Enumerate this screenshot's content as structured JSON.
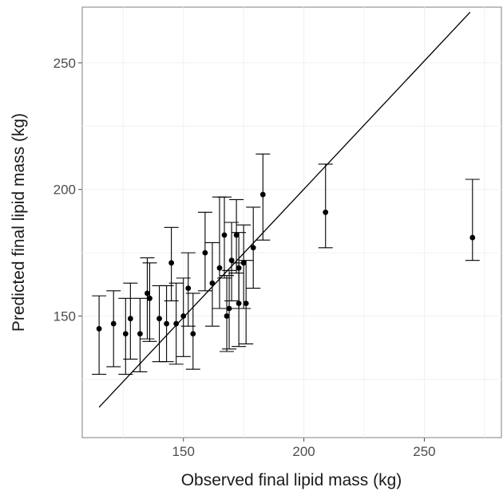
{
  "chart_data": {
    "type": "scatter",
    "xlabel": "Observed final lipid mass (kg)",
    "ylabel": "Predicted final lipid mass (kg)",
    "xlim": [
      108,
      282
    ],
    "ylim": [
      102,
      272
    ],
    "x_ticks": [
      150,
      200,
      250
    ],
    "y_ticks": [
      150,
      200,
      250
    ],
    "x_tick_labels": [
      "150",
      "200",
      "250"
    ],
    "y_tick_labels": [
      "150",
      "200",
      "250"
    ],
    "grid": true,
    "reference_line": {
      "from": [
        115,
        114
      ],
      "to": [
        269,
        270
      ]
    },
    "points": [
      {
        "x": 115,
        "y": 145,
        "lo": 127,
        "hi": 158
      },
      {
        "x": 121,
        "y": 147,
        "lo": 130,
        "hi": 160
      },
      {
        "x": 126,
        "y": 143,
        "lo": 127,
        "hi": 157
      },
      {
        "x": 128,
        "y": 149,
        "lo": 133,
        "hi": 163
      },
      {
        "x": 132,
        "y": 143,
        "lo": 128,
        "hi": 157
      },
      {
        "x": 135,
        "y": 159,
        "lo": 141,
        "hi": 173
      },
      {
        "x": 136,
        "y": 157,
        "lo": 140,
        "hi": 171
      },
      {
        "x": 140,
        "y": 149,
        "lo": 132,
        "hi": 162
      },
      {
        "x": 143,
        "y": 147,
        "lo": 132,
        "hi": 162
      },
      {
        "x": 145,
        "y": 171,
        "lo": 156,
        "hi": 185
      },
      {
        "x": 147,
        "y": 147,
        "lo": 131,
        "hi": 163
      },
      {
        "x": 150,
        "y": 150,
        "lo": 134,
        "hi": 165
      },
      {
        "x": 152,
        "y": 161,
        "lo": 146,
        "hi": 175
      },
      {
        "x": 154,
        "y": 143,
        "lo": 129,
        "hi": 159
      },
      {
        "x": 159,
        "y": 175,
        "lo": 160,
        "hi": 191
      },
      {
        "x": 162,
        "y": 163,
        "lo": 146,
        "hi": 179
      },
      {
        "x": 165,
        "y": 169,
        "lo": 153,
        "hi": 197
      },
      {
        "x": 167,
        "y": 182,
        "lo": 165,
        "hi": 197
      },
      {
        "x": 168,
        "y": 150,
        "lo": 136,
        "hi": 166
      },
      {
        "x": 169,
        "y": 153,
        "lo": 137,
        "hi": 168
      },
      {
        "x": 170,
        "y": 172,
        "lo": 156,
        "hi": 187
      },
      {
        "x": 172,
        "y": 182,
        "lo": 167,
        "hi": 196
      },
      {
        "x": 173,
        "y": 169,
        "lo": 153,
        "hi": 183
      },
      {
        "x": 173,
        "y": 155,
        "lo": 138,
        "hi": 171
      },
      {
        "x": 175,
        "y": 171,
        "lo": 153,
        "hi": 186
      },
      {
        "x": 176,
        "y": 155,
        "lo": 139,
        "hi": 172
      },
      {
        "x": 179,
        "y": 177,
        "lo": 161,
        "hi": 193
      },
      {
        "x": 183,
        "y": 198,
        "lo": 180,
        "hi": 214
      },
      {
        "x": 209,
        "y": 191,
        "lo": 177,
        "hi": 210
      },
      {
        "x": 270,
        "y": 181,
        "lo": 172,
        "hi": 204
      }
    ]
  }
}
